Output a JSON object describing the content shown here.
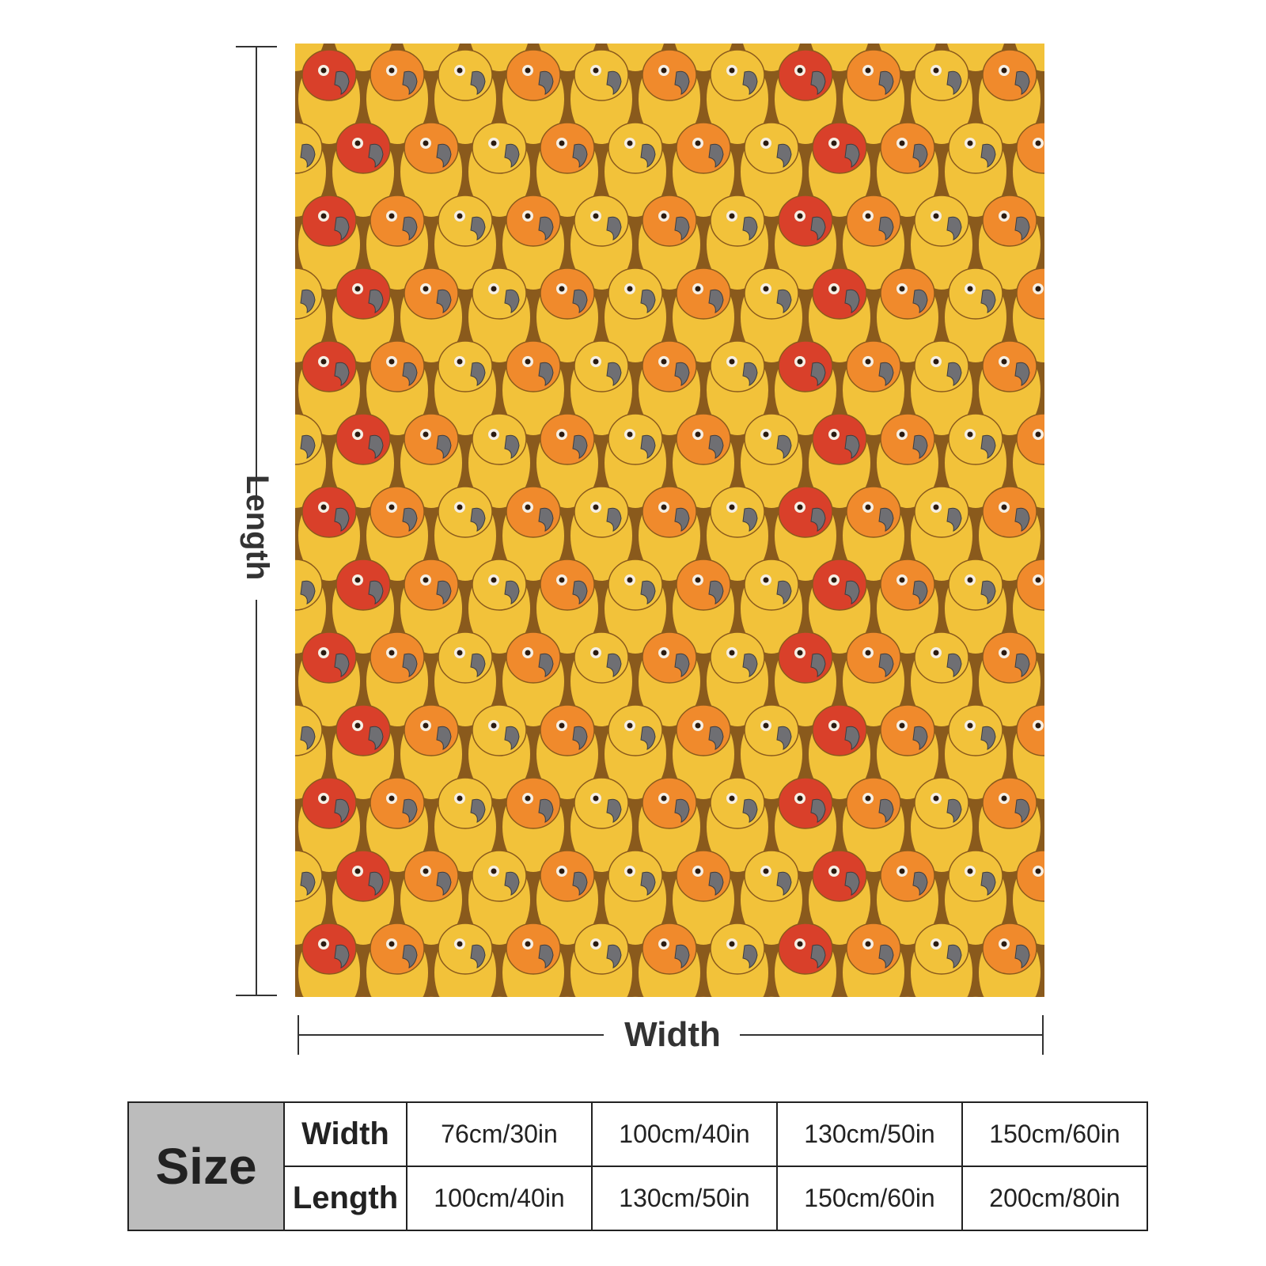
{
  "dimensions": {
    "length_label": "Length",
    "width_label": "Width"
  },
  "size_table": {
    "header": "Size",
    "rows": [
      {
        "label": "Width",
        "values": [
          "76cm/30in",
          "100cm/40in",
          "130cm/50in",
          "150cm/60in"
        ]
      },
      {
        "label": "Length",
        "values": [
          "100cm/40in",
          "130cm/50in",
          "150cm/60in",
          "200cm/80in"
        ]
      }
    ]
  },
  "product": {
    "image_subject": "parrot-pattern-blanket",
    "colors": {
      "yellow": "#f2c23a",
      "orange": "#f08a2c",
      "red": "#d9402a",
      "beak": "#6f6f73",
      "shadow": "#8a5a1c"
    }
  }
}
